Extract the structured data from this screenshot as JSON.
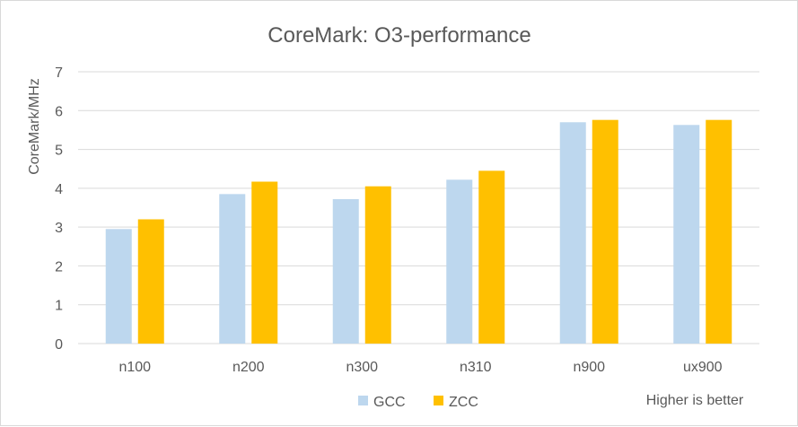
{
  "chart_data": {
    "type": "bar",
    "title": "CoreMark: O3-performance",
    "ylabel": "CoreMark/MHz",
    "xlabel": "",
    "ylim": [
      0,
      7
    ],
    "yticks": [
      0,
      1,
      2,
      3,
      4,
      5,
      6,
      7
    ],
    "grid": true,
    "legend": "bottom",
    "categories": [
      "n100",
      "n200",
      "n300",
      "n310",
      "n900",
      "ux900"
    ],
    "series": [
      {
        "name": "GCC",
        "color": "#bdd7ee",
        "values": [
          2.95,
          3.85,
          3.72,
          4.22,
          5.7,
          5.63
        ]
      },
      {
        "name": "ZCC",
        "color": "#ffc000",
        "values": [
          3.2,
          4.17,
          4.05,
          4.45,
          5.76,
          5.76
        ]
      }
    ],
    "annotation": "Higher is better"
  }
}
